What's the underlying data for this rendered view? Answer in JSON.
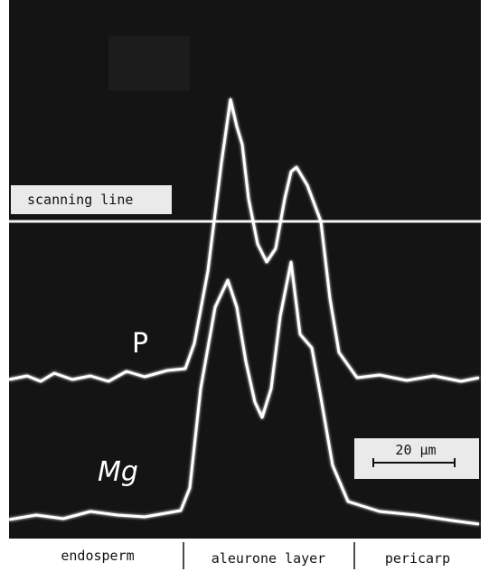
{
  "labels": {
    "scanning_line": "scanning line",
    "trace_p": "P",
    "trace_mg": "Mg",
    "scale_bar": "20 µm"
  },
  "regions": [
    "endosperm",
    "aleurone layer",
    "pericarp"
  ]
}
